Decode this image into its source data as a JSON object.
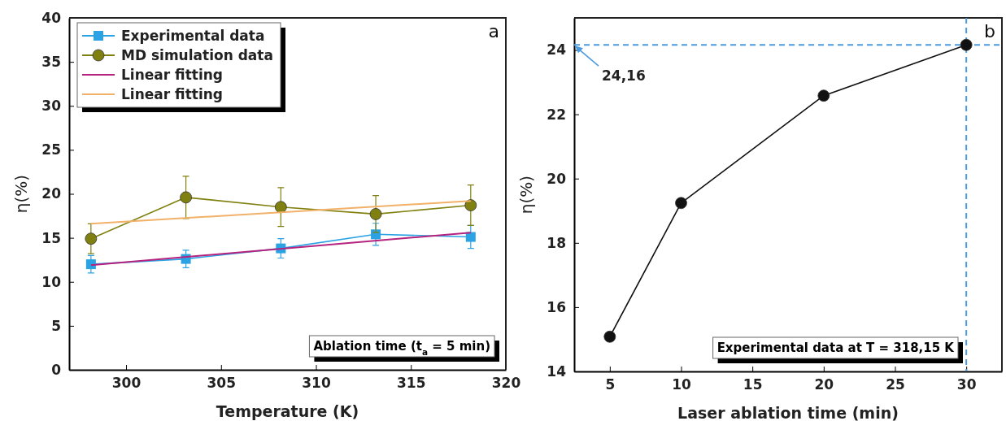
{
  "chart_data": [
    {
      "type": "line",
      "xlabel": "Temperature (K)",
      "ylabel": "η(%)",
      "xlim": [
        297,
        320
      ],
      "xticks": [
        300,
        305,
        310,
        315,
        320
      ],
      "ylim": [
        0,
        40
      ],
      "yticks": [
        0,
        5,
        10,
        15,
        20,
        25,
        30,
        35,
        40
      ],
      "grid": false,
      "legend": "top left",
      "series": [
        {
          "name": "Experimental data",
          "color": "#2ba2e3",
          "marker": "square",
          "x": [
            298.15,
            303.15,
            308.15,
            313.15,
            318.15
          ],
          "values": [
            12.0,
            12.6,
            13.8,
            15.4,
            15.1
          ],
          "errors": [
            1.0,
            1.0,
            1.1,
            1.25,
            1.3
          ]
        },
        {
          "name": "MD simulation data",
          "color": "#808010",
          "marker": "circle",
          "x": [
            298.15,
            303.15,
            308.15,
            313.15,
            318.15
          ],
          "values": [
            14.9,
            19.6,
            18.5,
            17.7,
            18.7
          ],
          "errors": [
            1.7,
            2.4,
            2.2,
            2.1,
            2.3
          ]
        },
        {
          "name": "Linear fitting",
          "color": "#b5237e",
          "marker": "none",
          "x": [
            298.15,
            318.15
          ],
          "values": [
            11.9,
            15.6
          ]
        },
        {
          "name": "Linear fitting",
          "color": "#f2b168",
          "marker": "none",
          "x": [
            298.15,
            318.15
          ],
          "values": [
            16.6,
            19.2
          ]
        }
      ],
      "annotations": [
        "a",
        "Ablation time (t$_{a}$ = 5 min)"
      ]
    },
    {
      "type": "line",
      "xlabel": "Laser ablation time (min)",
      "ylabel": "η(%)",
      "xlim": [
        2.5,
        32.5
      ],
      "xticks": [
        5,
        10,
        15,
        20,
        25,
        30
      ],
      "ylim": [
        14,
        25
      ],
      "yticks": [
        14,
        16,
        18,
        20,
        22,
        24
      ],
      "grid": false,
      "legend": false,
      "marker": "circle",
      "series": [
        {
          "color": "#111111",
          "x": [
            5,
            10,
            20,
            30
          ],
          "values": [
            15.08,
            19.24,
            22.58,
            24.16
          ]
        }
      ],
      "ref_lines": [
        {
          "axis": "y",
          "value": 24.16,
          "color": "#4a9be0",
          "line_style": "dashed"
        },
        {
          "axis": "x",
          "value": 30,
          "color": "#4a9be0",
          "line_style": "dashed"
        }
      ],
      "annotations": [
        "b",
        {
          "text": "24,16",
          "x": 2.5,
          "y": 24.16
        },
        "Experimental data at T = 318,15 K"
      ]
    }
  ]
}
